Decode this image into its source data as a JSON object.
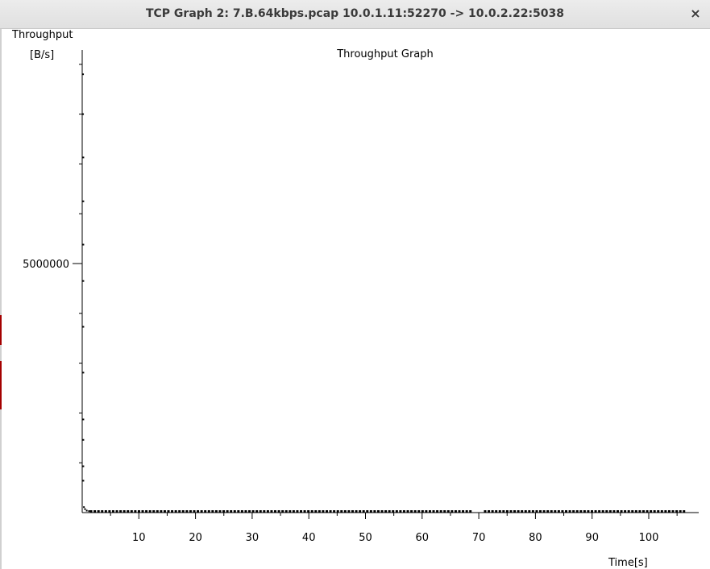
{
  "window": {
    "title": "TCP Graph 2: 7.B.64kbps.pcap 10.0.1.11:52270 -> 10.0.2.22:5038",
    "close_symbol": "×"
  },
  "chart_data": {
    "type": "scatter",
    "title": "Throughput Graph",
    "ylabel": "Throughput",
    "yunit": "[B/s]",
    "xlabel": "Time[s]",
    "xlim": [
      0,
      109
    ],
    "ylim": [
      0,
      9000000
    ],
    "x_ticks": [
      10,
      20,
      30,
      40,
      50,
      60,
      70,
      80,
      90,
      100
    ],
    "x_minor_step": 5,
    "y_ticks": [
      5000000
    ],
    "y_minor_step": 1000000,
    "grid": false,
    "series": [
      {
        "color": "#000000",
        "points": [
          [
            0.15,
            8800000
          ],
          [
            0.15,
            8000000
          ],
          [
            0.2,
            7130000
          ],
          [
            0.2,
            6250000
          ],
          [
            0.2,
            5380000
          ],
          [
            0.2,
            4650000
          ],
          [
            0.2,
            3730000
          ],
          [
            0.2,
            2810000
          ],
          [
            0.2,
            1870000
          ],
          [
            0.2,
            1460000
          ],
          [
            0.2,
            930000
          ],
          [
            0.2,
            640000
          ],
          [
            0.3,
            110000
          ],
          [
            0.5,
            70000
          ],
          [
            0.8,
            40000
          ],
          [
            1.2,
            30000
          ]
        ],
        "baseline": {
          "x_start": 1.5,
          "x_end": 106.2,
          "step": 0.65,
          "value": 15000,
          "gaps": [
            [
              44.5,
              45
            ],
            [
              68.5,
              71
            ]
          ]
        }
      }
    ]
  }
}
